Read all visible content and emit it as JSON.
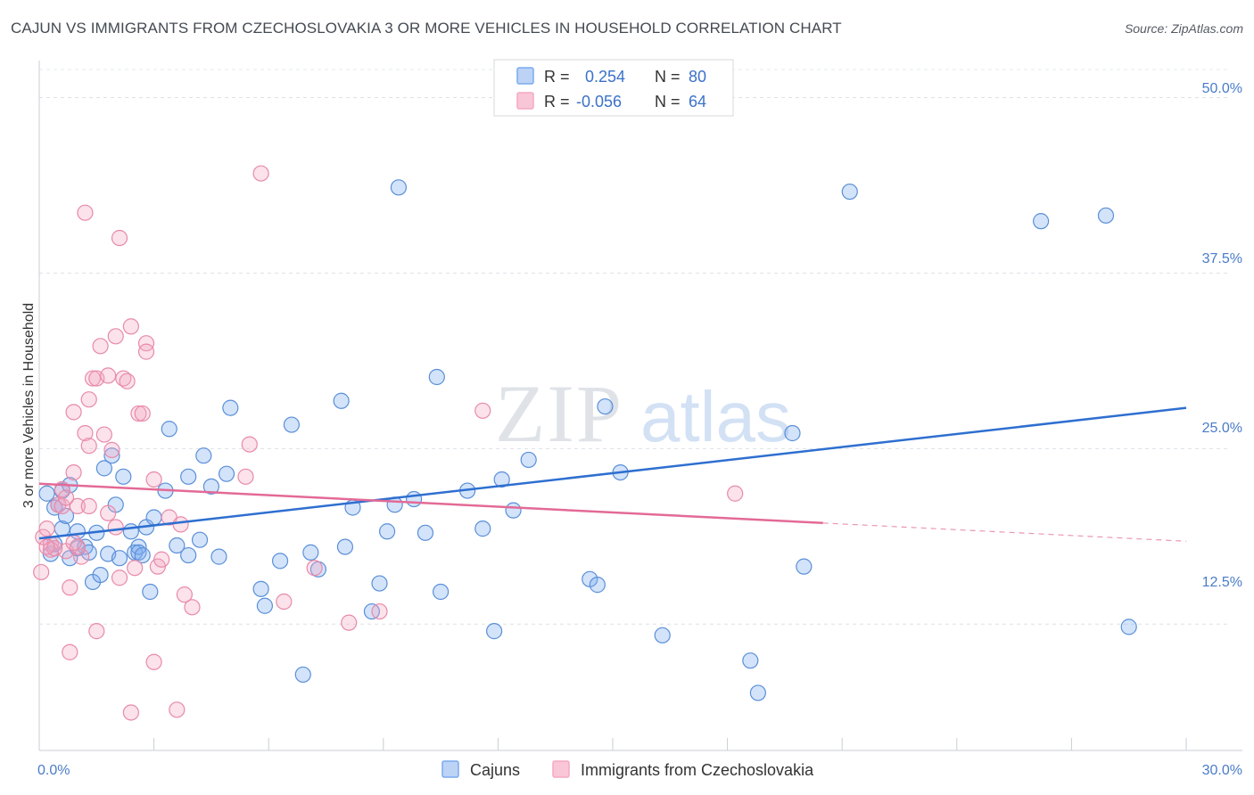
{
  "title": "CAJUN VS IMMIGRANTS FROM CZECHOSLOVAKIA 3 OR MORE VEHICLES IN HOUSEHOLD CORRELATION CHART",
  "source": "Source: ZipAtlas.com",
  "watermark": {
    "zip": "ZIP",
    "atlas": "atlas"
  },
  "chart_data": {
    "type": "scatter",
    "ylabel": "3 or more Vehicles in Household",
    "xlabel": "",
    "xlim": [
      0,
      30
    ],
    "ylim": [
      3.5,
      52
    ],
    "x_tick_labels": [
      "0.0%",
      "30.0%"
    ],
    "y_ticks": [
      12.5,
      25.0,
      37.5,
      50.0
    ],
    "y_tick_labels": [
      "12.5%",
      "25.0%",
      "37.5%",
      "50.0%"
    ],
    "grid": true,
    "legend_position": "top-center",
    "series": [
      {
        "name": "Cajuns",
        "color": "#7aaaf0",
        "stroke": "#5a8fd8",
        "line_color": "#2e6fd0",
        "R": "0.254",
        "N": "80",
        "trend": {
          "x": [
            0,
            30
          ],
          "y": [
            18.6,
            27.9
          ]
        },
        "points": [
          [
            0.2,
            21.8
          ],
          [
            0.3,
            17.5
          ],
          [
            0.4,
            18.2
          ],
          [
            0.4,
            20.8
          ],
          [
            0.5,
            21.0
          ],
          [
            0.6,
            22.0
          ],
          [
            0.6,
            19.3
          ],
          [
            0.7,
            20.2
          ],
          [
            0.8,
            17.2
          ],
          [
            0.8,
            22.4
          ],
          [
            1.0,
            19.1
          ],
          [
            1.0,
            17.9
          ],
          [
            1.2,
            18.0
          ],
          [
            1.3,
            17.6
          ],
          [
            1.4,
            15.5
          ],
          [
            1.5,
            19.0
          ],
          [
            1.6,
            16.0
          ],
          [
            1.7,
            23.6
          ],
          [
            1.8,
            17.5
          ],
          [
            1.9,
            24.5
          ],
          [
            2.0,
            21.0
          ],
          [
            2.1,
            17.2
          ],
          [
            2.2,
            23.0
          ],
          [
            2.4,
            19.1
          ],
          [
            2.5,
            17.6
          ],
          [
            2.6,
            18.0
          ],
          [
            2.6,
            17.6
          ],
          [
            2.7,
            17.4
          ],
          [
            2.8,
            19.4
          ],
          [
            2.9,
            14.8
          ],
          [
            3.0,
            20.1
          ],
          [
            3.3,
            22.0
          ],
          [
            3.4,
            26.4
          ],
          [
            3.6,
            18.1
          ],
          [
            3.9,
            23.0
          ],
          [
            3.9,
            17.4
          ],
          [
            4.2,
            18.5
          ],
          [
            4.3,
            24.5
          ],
          [
            4.5,
            22.3
          ],
          [
            4.7,
            17.3
          ],
          [
            4.9,
            23.2
          ],
          [
            5.0,
            27.9
          ],
          [
            5.8,
            15.0
          ],
          [
            5.9,
            13.8
          ],
          [
            6.3,
            17.0
          ],
          [
            6.6,
            26.7
          ],
          [
            6.9,
            8.9
          ],
          [
            7.1,
            17.6
          ],
          [
            7.3,
            16.4
          ],
          [
            7.9,
            28.4
          ],
          [
            8.0,
            18.0
          ],
          [
            8.2,
            20.8
          ],
          [
            8.7,
            13.4
          ],
          [
            8.9,
            15.4
          ],
          [
            9.1,
            19.1
          ],
          [
            9.3,
            21.0
          ],
          [
            9.4,
            43.6
          ],
          [
            9.8,
            21.4
          ],
          [
            10.1,
            19.0
          ],
          [
            10.4,
            30.1
          ],
          [
            10.5,
            14.8
          ],
          [
            11.2,
            22.0
          ],
          [
            11.6,
            19.3
          ],
          [
            11.9,
            12.0
          ],
          [
            12.1,
            22.8
          ],
          [
            12.4,
            20.6
          ],
          [
            12.8,
            24.2
          ],
          [
            14.4,
            15.7
          ],
          [
            14.6,
            15.3
          ],
          [
            14.8,
            28.0
          ],
          [
            15.2,
            23.3
          ],
          [
            16.3,
            11.7
          ],
          [
            18.6,
            9.9
          ],
          [
            18.8,
            7.6
          ],
          [
            19.7,
            26.1
          ],
          [
            21.2,
            43.3
          ],
          [
            26.2,
            41.2
          ],
          [
            27.9,
            41.6
          ],
          [
            28.5,
            12.3
          ],
          [
            20.0,
            16.6
          ]
        ]
      },
      {
        "name": "Immigrants from Czechoslovakia",
        "color": "#f4a8c2",
        "stroke": "#e88aaa",
        "line_color": "#e36a96",
        "R": "-0.056",
        "N": "64",
        "trend": {
          "x": [
            0,
            20.5
          ],
          "y": [
            22.5,
            19.7
          ]
        },
        "trend_dashed": {
          "x": [
            20.5,
            30
          ],
          "y": [
            19.7,
            18.4
          ]
        },
        "points": [
          [
            0.05,
            16.2
          ],
          [
            0.1,
            18.7
          ],
          [
            0.2,
            19.3
          ],
          [
            0.3,
            18.2
          ],
          [
            0.3,
            17.8
          ],
          [
            0.5,
            21.0
          ],
          [
            0.6,
            22.1
          ],
          [
            0.6,
            20.9
          ],
          [
            0.7,
            17.7
          ],
          [
            0.8,
            15.1
          ],
          [
            0.8,
            10.5
          ],
          [
            0.9,
            23.3
          ],
          [
            0.9,
            27.6
          ],
          [
            1.0,
            20.9
          ],
          [
            1.1,
            17.3
          ],
          [
            1.2,
            41.8
          ],
          [
            1.2,
            26.1
          ],
          [
            1.3,
            25.2
          ],
          [
            1.3,
            28.5
          ],
          [
            1.3,
            20.9
          ],
          [
            1.4,
            30.0
          ],
          [
            1.5,
            30.0
          ],
          [
            1.5,
            12.0
          ],
          [
            1.6,
            32.3
          ],
          [
            1.7,
            26.0
          ],
          [
            1.8,
            30.2
          ],
          [
            1.8,
            20.4
          ],
          [
            1.9,
            24.9
          ],
          [
            2.0,
            33.0
          ],
          [
            2.0,
            19.4
          ],
          [
            2.1,
            40.0
          ],
          [
            2.1,
            15.8
          ],
          [
            2.2,
            30.0
          ],
          [
            2.3,
            29.8
          ],
          [
            2.4,
            6.2
          ],
          [
            2.4,
            33.7
          ],
          [
            2.5,
            16.5
          ],
          [
            2.6,
            27.5
          ],
          [
            2.8,
            32.5
          ],
          [
            2.8,
            31.9
          ],
          [
            3.0,
            22.8
          ],
          [
            3.0,
            9.8
          ],
          [
            3.1,
            16.6
          ],
          [
            3.2,
            17.1
          ],
          [
            3.4,
            20.1
          ],
          [
            3.6,
            6.4
          ],
          [
            3.7,
            19.6
          ],
          [
            3.8,
            14.6
          ],
          [
            4.0,
            13.7
          ],
          [
            5.4,
            23.0
          ],
          [
            5.5,
            25.3
          ],
          [
            5.8,
            44.6
          ],
          [
            6.4,
            14.1
          ],
          [
            7.2,
            16.5
          ],
          [
            8.1,
            12.6
          ],
          [
            8.9,
            13.4
          ],
          [
            11.6,
            27.7
          ],
          [
            18.2,
            21.8
          ],
          [
            0.4,
            17.9
          ],
          [
            0.7,
            21.5
          ],
          [
            1.0,
            18.0
          ],
          [
            2.7,
            27.5
          ],
          [
            0.2,
            18.0
          ],
          [
            0.9,
            18.3
          ]
        ]
      }
    ]
  }
}
